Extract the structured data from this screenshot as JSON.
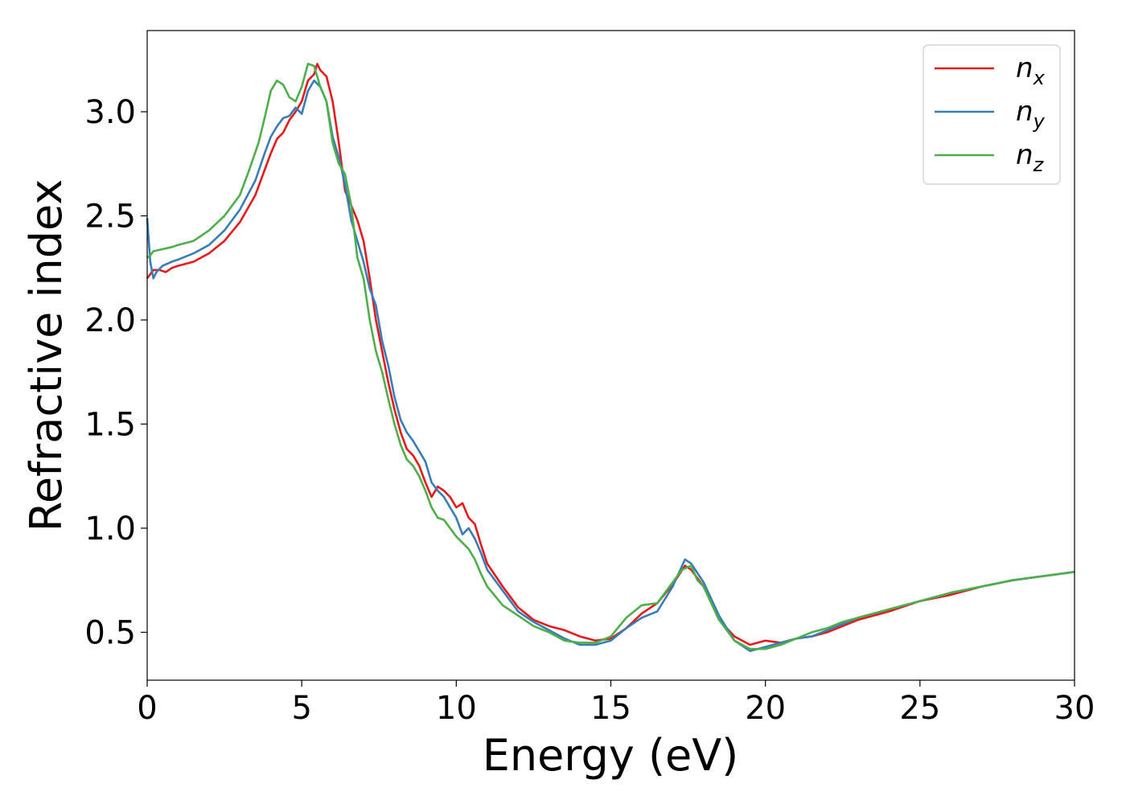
{
  "chart_data": {
    "type": "line",
    "xlabel": "Energy (eV)",
    "ylabel": "Refractive index",
    "xlim": [
      0,
      30
    ],
    "ylim": [
      0.27,
      3.39
    ],
    "xticks": [
      "0",
      "5",
      "10",
      "15",
      "20",
      "25",
      "30"
    ],
    "yticks": [
      "0.5",
      "1.0",
      "1.5",
      "2.0",
      "2.5",
      "3.0"
    ],
    "grid": false,
    "legend_position": "top-right",
    "series": [
      {
        "name": "n_x",
        "legend_base": "n",
        "legend_sub": "x",
        "color": "#e41a1c",
        "x": [
          0,
          0.1,
          0.2,
          0.4,
          0.6,
          0.8,
          1.0,
          1.5,
          2.0,
          2.5,
          3.0,
          3.5,
          3.8,
          4.0,
          4.2,
          4.4,
          4.6,
          4.8,
          5.0,
          5.2,
          5.4,
          5.5,
          5.6,
          5.8,
          6.0,
          6.2,
          6.4,
          6.6,
          6.8,
          7.0,
          7.2,
          7.4,
          7.6,
          7.8,
          8.0,
          8.2,
          8.4,
          8.6,
          8.8,
          9.0,
          9.2,
          9.4,
          9.6,
          9.8,
          10.0,
          10.2,
          10.4,
          10.6,
          10.8,
          11.0,
          11.5,
          12.0,
          12.5,
          13.0,
          13.5,
          14.0,
          14.5,
          15.0,
          15.5,
          16.0,
          16.5,
          17.0,
          17.4,
          17.6,
          18.0,
          18.5,
          19.0,
          19.5,
          20.0,
          20.5,
          21.0,
          21.5,
          22.0,
          22.5,
          23.0,
          24.0,
          25.0,
          26.0,
          27.0,
          28.0,
          29.0,
          30.0
        ],
        "values": [
          2.2,
          2.22,
          2.24,
          2.24,
          2.23,
          2.25,
          2.26,
          2.28,
          2.32,
          2.38,
          2.47,
          2.6,
          2.72,
          2.8,
          2.87,
          2.9,
          2.96,
          3.0,
          3.05,
          3.15,
          3.18,
          3.23,
          3.2,
          3.17,
          3.05,
          2.85,
          2.62,
          2.55,
          2.48,
          2.38,
          2.2,
          2.0,
          1.85,
          1.7,
          1.57,
          1.46,
          1.38,
          1.35,
          1.3,
          1.22,
          1.15,
          1.2,
          1.18,
          1.15,
          1.1,
          1.12,
          1.05,
          1.02,
          0.92,
          0.83,
          0.72,
          0.62,
          0.56,
          0.53,
          0.51,
          0.48,
          0.46,
          0.47,
          0.52,
          0.59,
          0.64,
          0.73,
          0.82,
          0.8,
          0.72,
          0.56,
          0.48,
          0.44,
          0.46,
          0.45,
          0.47,
          0.48,
          0.5,
          0.53,
          0.56,
          0.6,
          0.65,
          0.68,
          0.72,
          0.75,
          0.77,
          0.79
        ]
      },
      {
        "name": "n_y",
        "legend_base": "n",
        "legend_sub": "y",
        "color": "#377eb8",
        "x": [
          0,
          0.1,
          0.2,
          0.3,
          0.5,
          0.8,
          1.0,
          1.5,
          2.0,
          2.5,
          3.0,
          3.5,
          3.8,
          4.0,
          4.2,
          4.4,
          4.6,
          4.8,
          5.0,
          5.2,
          5.4,
          5.6,
          5.8,
          6.0,
          6.2,
          6.4,
          6.6,
          6.8,
          7.0,
          7.2,
          7.4,
          7.6,
          7.8,
          8.0,
          8.2,
          8.4,
          8.6,
          8.8,
          9.0,
          9.2,
          9.4,
          9.6,
          9.8,
          10.0,
          10.2,
          10.4,
          10.6,
          10.8,
          11.0,
          11.5,
          12.0,
          12.5,
          13.0,
          13.5,
          14.0,
          14.5,
          15.0,
          15.5,
          16.0,
          16.5,
          17.0,
          17.4,
          17.6,
          18.0,
          18.5,
          19.0,
          19.5,
          20.0,
          20.5,
          21.0,
          21.5,
          22.0,
          22.5,
          23.0,
          24.0,
          25.0,
          26.0,
          27.0,
          28.0,
          29.0,
          30.0
        ],
        "values": [
          2.49,
          2.28,
          2.2,
          2.23,
          2.26,
          2.28,
          2.29,
          2.32,
          2.36,
          2.43,
          2.53,
          2.67,
          2.8,
          2.88,
          2.93,
          2.97,
          2.98,
          3.02,
          2.99,
          3.1,
          3.15,
          3.12,
          3.05,
          2.88,
          2.78,
          2.65,
          2.48,
          2.38,
          2.28,
          2.15,
          2.07,
          1.9,
          1.78,
          1.63,
          1.52,
          1.46,
          1.42,
          1.37,
          1.32,
          1.22,
          1.18,
          1.15,
          1.1,
          1.05,
          0.97,
          1.0,
          0.95,
          0.88,
          0.8,
          0.7,
          0.6,
          0.55,
          0.51,
          0.47,
          0.44,
          0.44,
          0.46,
          0.52,
          0.57,
          0.6,
          0.72,
          0.85,
          0.83,
          0.74,
          0.58,
          0.46,
          0.41,
          0.43,
          0.45,
          0.47,
          0.48,
          0.51,
          0.54,
          0.57,
          0.61,
          0.65,
          0.69,
          0.72,
          0.75,
          0.77,
          0.79
        ]
      },
      {
        "name": "n_z",
        "legend_base": "n",
        "legend_sub": "z",
        "color": "#4daf4a",
        "x": [
          0,
          0.1,
          0.2,
          0.5,
          0.8,
          1.0,
          1.5,
          2.0,
          2.5,
          3.0,
          3.3,
          3.6,
          3.8,
          4.0,
          4.2,
          4.4,
          4.6,
          4.8,
          5.0,
          5.2,
          5.4,
          5.6,
          5.8,
          6.0,
          6.2,
          6.4,
          6.6,
          6.8,
          7.0,
          7.2,
          7.4,
          7.6,
          7.8,
          8.0,
          8.2,
          8.4,
          8.6,
          8.8,
          9.0,
          9.2,
          9.4,
          9.6,
          9.8,
          10.0,
          10.2,
          10.4,
          10.6,
          10.8,
          11.0,
          11.5,
          12.0,
          12.5,
          13.0,
          13.5,
          14.0,
          14.5,
          15.0,
          15.5,
          16.0,
          16.5,
          17.0,
          17.3,
          17.6,
          17.8,
          18.0,
          18.5,
          19.0,
          19.5,
          20.0,
          20.5,
          21.0,
          21.5,
          22.0,
          22.5,
          23.0,
          24.0,
          25.0,
          26.0,
          27.0,
          28.0,
          29.0,
          30.0
        ],
        "values": [
          2.3,
          2.31,
          2.33,
          2.34,
          2.35,
          2.36,
          2.38,
          2.43,
          2.5,
          2.6,
          2.72,
          2.85,
          2.97,
          3.1,
          3.15,
          3.13,
          3.07,
          3.05,
          3.12,
          3.23,
          3.22,
          3.12,
          3.05,
          2.85,
          2.75,
          2.7,
          2.55,
          2.3,
          2.2,
          2.0,
          1.85,
          1.75,
          1.62,
          1.5,
          1.4,
          1.33,
          1.3,
          1.25,
          1.18,
          1.1,
          1.05,
          1.04,
          1.0,
          0.96,
          0.93,
          0.9,
          0.85,
          0.78,
          0.72,
          0.63,
          0.58,
          0.53,
          0.5,
          0.46,
          0.45,
          0.45,
          0.48,
          0.57,
          0.63,
          0.64,
          0.74,
          0.8,
          0.82,
          0.75,
          0.72,
          0.56,
          0.46,
          0.42,
          0.42,
          0.44,
          0.47,
          0.5,
          0.52,
          0.55,
          0.57,
          0.61,
          0.65,
          0.69,
          0.72,
          0.75,
          0.77,
          0.79
        ]
      }
    ]
  }
}
